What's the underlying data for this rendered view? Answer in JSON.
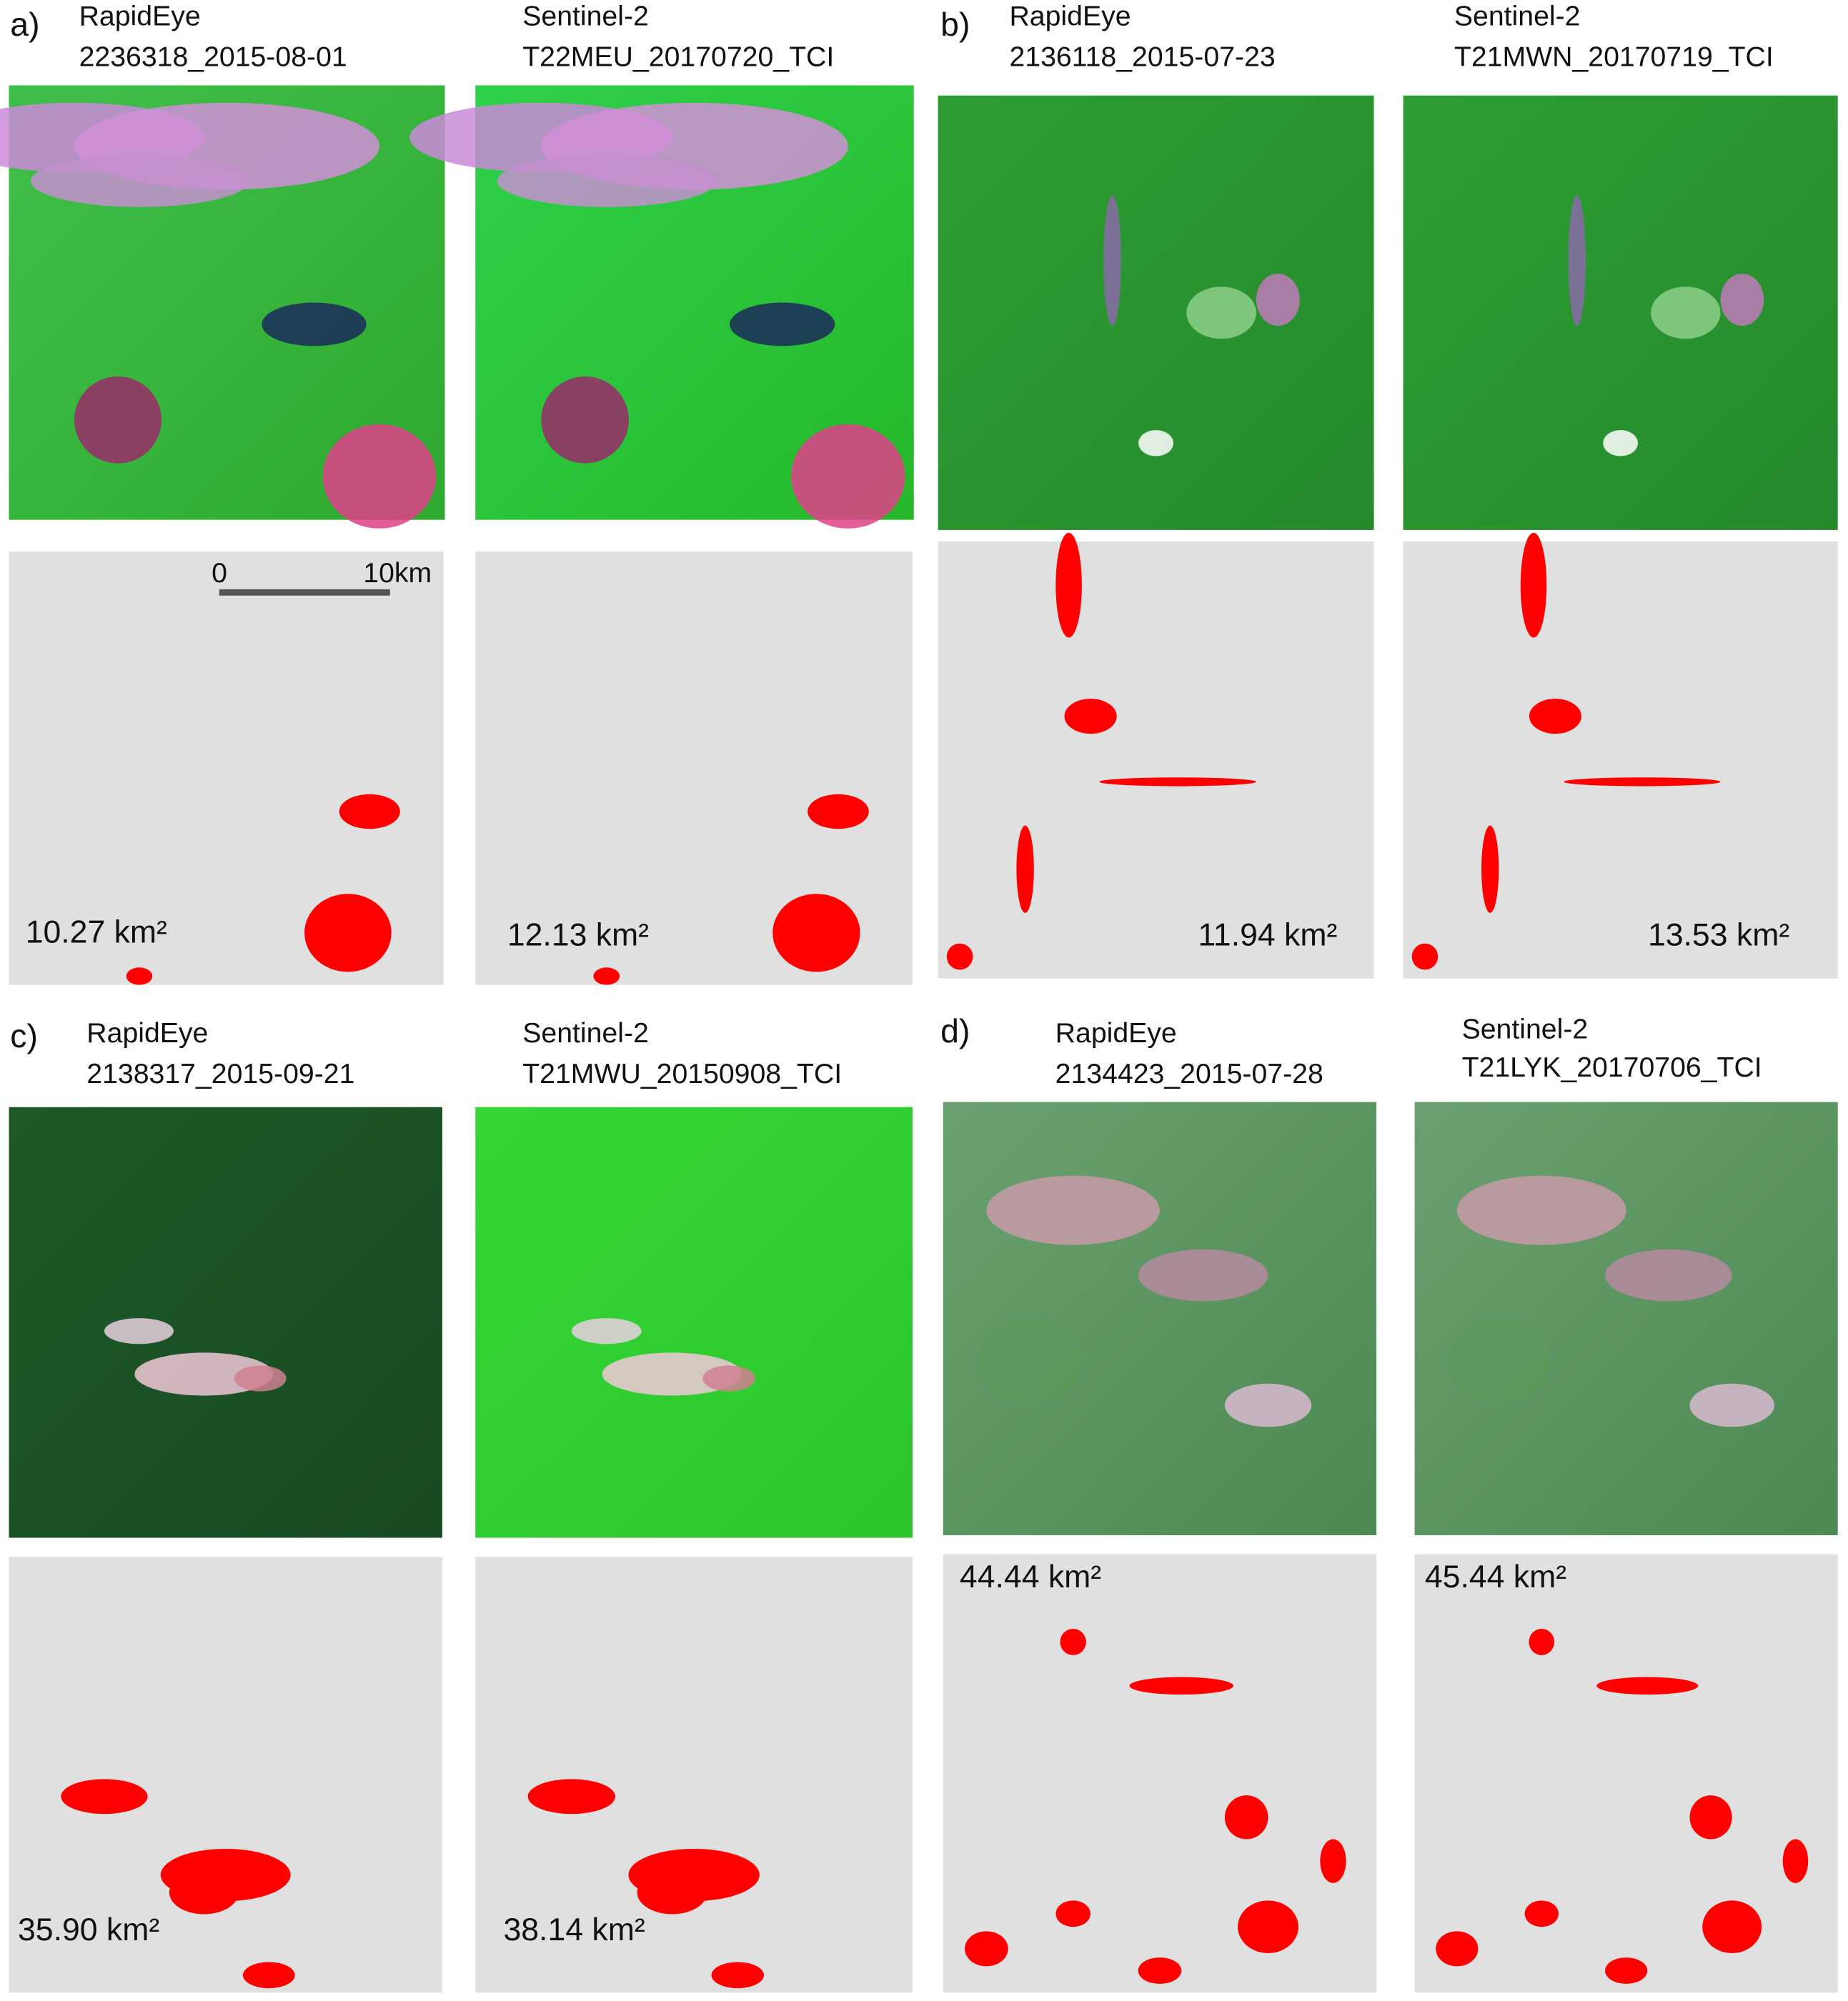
{
  "panels": [
    {
      "label": "a)",
      "columns": [
        {
          "sensor": "RapidEye",
          "scene": "2236318_2015-08-01",
          "area": "10.27 km²"
        },
        {
          "sensor": "Sentinel-2",
          "scene": "T22MEU_20170720_TCI",
          "area": "12.13 km²"
        }
      ],
      "scale_bar": {
        "start": "0",
        "end": "10km"
      }
    },
    {
      "label": "b)",
      "columns": [
        {
          "sensor": "RapidEye",
          "scene": "2136118_2015-07-23",
          "area": "11.94 km²"
        },
        {
          "sensor": "Sentinel-2",
          "scene": "T21MWN_20170719_TCI",
          "area": "13.53 km²"
        }
      ]
    },
    {
      "label": "c)",
      "columns": [
        {
          "sensor": "RapidEye",
          "scene": "2138317_2015-09-21",
          "area": "35.90 km²"
        },
        {
          "sensor": "Sentinel-2",
          "scene": "T21MWU_20150908_TCI",
          "area": "38.14 km²"
        }
      ]
    },
    {
      "label": "d)",
      "columns": [
        {
          "sensor": "RapidEye",
          "scene": "2134423_2015-07-28",
          "area": "44.44 km²"
        },
        {
          "sensor": "Sentinel-2",
          "scene": "T21LYK_20170706_TCI",
          "area": "45.44 km²"
        }
      ]
    }
  ]
}
